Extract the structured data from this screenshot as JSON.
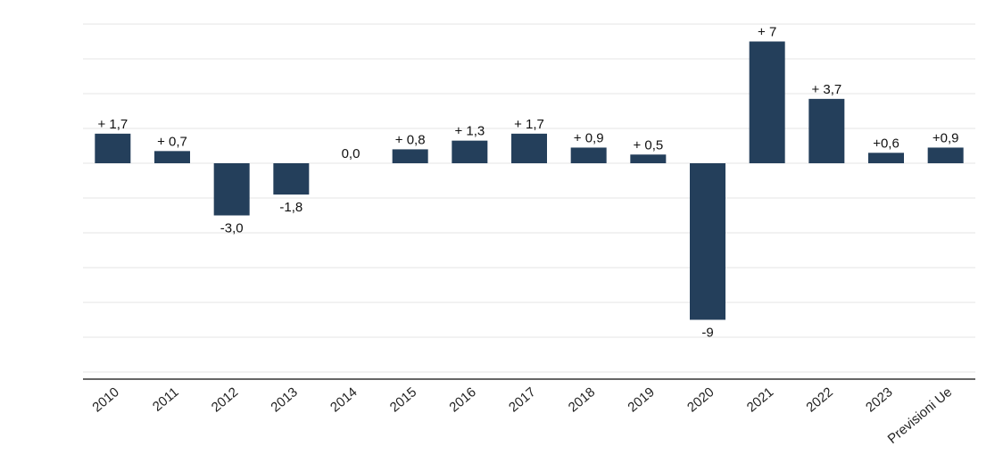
{
  "chart_data": {
    "type": "bar",
    "categories": [
      "2010",
      "2011",
      "2012",
      "2013",
      "2014",
      "2015",
      "2016",
      "2017",
      "2018",
      "2019",
      "2020",
      "2021",
      "2022",
      "2023",
      "Previsioni Ue"
    ],
    "values": [
      1.7,
      0.7,
      -3.0,
      -1.8,
      0.0,
      0.8,
      1.3,
      1.7,
      0.9,
      0.5,
      -9.0,
      7.0,
      3.7,
      0.6,
      0.9
    ],
    "value_labels": [
      "+ 1,7",
      "+ 0,7",
      "-3,0",
      "-1,8",
      "0,0",
      "+ 0,8",
      "+ 1,3",
      "+ 1,7",
      "+ 0,9",
      "+ 0,5",
      "-9",
      "+ 7",
      "+ 3,7",
      "+0,6",
      "+0,9"
    ],
    "ylim": [
      -12,
      8
    ],
    "grid": true,
    "legend": "none",
    "colors": {
      "bar": "#243f5b"
    }
  }
}
